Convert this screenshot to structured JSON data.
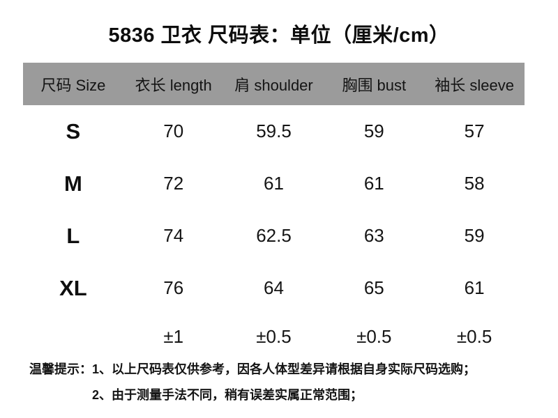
{
  "title": "5836 卫衣 尺码表：单位（厘米/cm）",
  "table": {
    "header_bg": "#9b9b9b",
    "headers": [
      "尺码 Size",
      "衣长 length",
      "肩 shoulder",
      "胸围 bust",
      "袖长 sleeve"
    ],
    "rows": [
      {
        "size": "S",
        "values": [
          "70",
          "59.5",
          "59",
          "57"
        ]
      },
      {
        "size": "M",
        "values": [
          "72",
          "61",
          "61",
          "58"
        ]
      },
      {
        "size": "L",
        "values": [
          "74",
          "62.5",
          "63",
          "59"
        ]
      },
      {
        "size": "XL",
        "values": [
          "76",
          "64",
          "65",
          "61"
        ]
      },
      {
        "size": "",
        "values": [
          "±1",
          "±0.5",
          "±0.5",
          "±0.5"
        ]
      }
    ]
  },
  "notes": {
    "prefix": "温馨提示：",
    "items": [
      "1、以上尺码表仅供参考，因各人体型差异请根据自身实际尺码选购；",
      "2、由于测量手法不同，稍有误差实属正常范围；"
    ]
  }
}
